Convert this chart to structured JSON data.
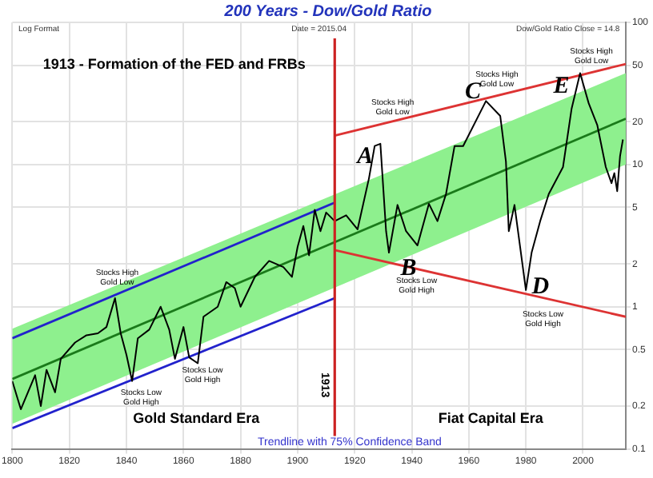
{
  "chart_data": {
    "type": "line",
    "title": "200 Years - Dow/Gold Ratio",
    "xlim": [
      1800,
      2015
    ],
    "xticks": [
      1800,
      1820,
      1840,
      1860,
      1880,
      1900,
      1920,
      1940,
      1960,
      1980,
      2000
    ],
    "ylim": [
      0.1,
      100
    ],
    "yticks": [
      0.1,
      0.2,
      0.5,
      1,
      2,
      5,
      10,
      20,
      50,
      100
    ],
    "log": "y",
    "grid": true,
    "legend": false,
    "marker": "none",
    "line_style": "solid",
    "series": [
      {
        "color": "#000000",
        "x": [
          1800,
          1803,
          1808,
          1810,
          1812,
          1815,
          1817,
          1822,
          1826,
          1830,
          1833,
          1836,
          1838,
          1840,
          1842,
          1844,
          1848,
          1852,
          1855,
          1857,
          1860,
          1862,
          1865,
          1867,
          1872,
          1875,
          1878,
          1880,
          1885,
          1890,
          1895,
          1898,
          1900,
          1902,
          1904,
          1906,
          1908,
          1910,
          1913,
          1917,
          1921,
          1925,
          1927,
          1929,
          1931,
          1932,
          1935,
          1938,
          1942,
          1946,
          1949,
          1952,
          1955,
          1958,
          1966,
          1971,
          1973,
          1974,
          1976,
          1980,
          1982,
          1985,
          1988,
          1993,
          1996,
          1999,
          2002,
          2005,
          2008,
          2010,
          2011,
          2012,
          2013,
          2014
        ],
        "values": [
          0.3,
          0.19,
          0.33,
          0.2,
          0.36,
          0.25,
          0.43,
          0.56,
          0.63,
          0.65,
          0.72,
          1.15,
          0.65,
          0.46,
          0.3,
          0.6,
          0.69,
          1.0,
          0.69,
          0.43,
          0.72,
          0.44,
          0.4,
          0.85,
          1.0,
          1.49,
          1.35,
          1.0,
          1.62,
          2.1,
          1.9,
          1.62,
          2.64,
          3.7,
          2.3,
          4.8,
          3.4,
          4.6,
          4.0,
          4.4,
          3.5,
          8.0,
          13.5,
          14,
          3.4,
          2.4,
          5.2,
          3.4,
          2.7,
          5.3,
          4.0,
          6.2,
          13.5,
          13.5,
          28,
          22,
          10.5,
          3.4,
          5.2,
          1.31,
          2.4,
          4.0,
          6.2,
          9.6,
          24.6,
          44,
          27,
          19,
          9.6,
          7.4,
          8.7,
          6.5,
          11.5,
          15
        ]
      },
      {
        "color": "#1a7a1a",
        "x": [
          1800,
          2015
        ],
        "values": [
          0.31,
          21
        ],
        "lower": [
          0.15,
          10
        ],
        "upper": [
          0.7,
          44
        ]
      },
      {
        "color": "#2222cc",
        "x": [
          1800,
          1913
        ],
        "values": [
          0.6,
          5.4
        ]
      },
      {
        "color": "#2222cc",
        "x": [
          1800,
          1913
        ],
        "values": [
          0.14,
          1.15
        ]
      },
      {
        "color": "#dd3333",
        "x": [
          1913,
          2015
        ],
        "values": [
          16,
          51
        ]
      },
      {
        "color": "#dd3333",
        "x": [
          1913,
          2015
        ],
        "values": [
          2.5,
          0.85
        ]
      }
    ],
    "ref_lines": [
      {
        "axis": "x",
        "value": 1913,
        "label": "1913",
        "color": "#cc2222"
      }
    ],
    "annotations": [
      "Log Format",
      "Date = 2015.04",
      "Dow/Gold Ratio Close = 14.8",
      "1913 - Formation of the FED and FRBs",
      "Gold Standard Era",
      "Fiat Capital Era",
      "Trendline with 75% Confidence Band",
      "A",
      "B",
      "C",
      "D",
      "E",
      "Stocks High\nGold Low",
      "Stocks Low\nGold High",
      "Stocks Low\nGold High",
      "Stocks High\nGold Low",
      "Stocks High\nGold Low",
      "Stocks High\nGold Low",
      "Stocks Low\nGold High",
      "Stocks Low\nGold High"
    ]
  }
}
